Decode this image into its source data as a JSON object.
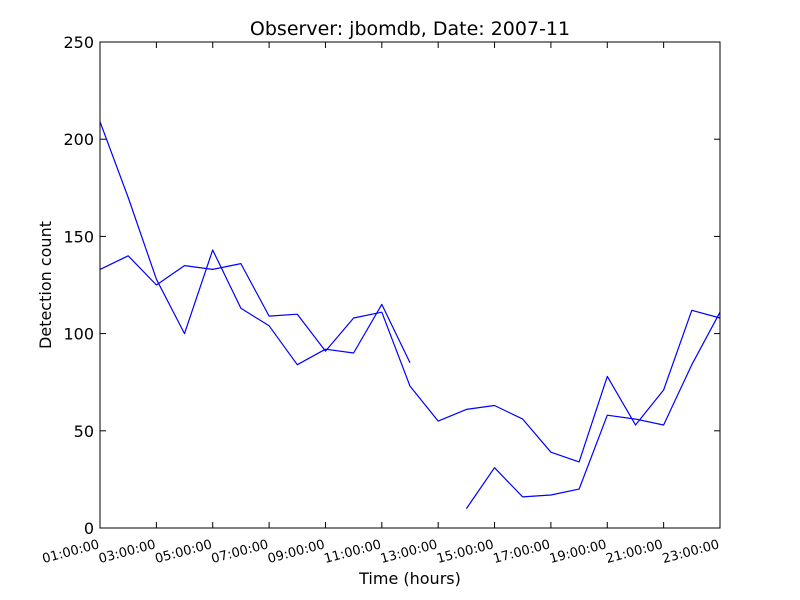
{
  "chart_data": {
    "type": "line",
    "title": "Observer: jbomdb, Date: 2007-11",
    "xlabel": "Time (hours)",
    "ylabel": "Detection count",
    "xlim": [
      "01:00:00",
      "23:00:00"
    ],
    "ylim": [
      0,
      250
    ],
    "x_ticks": [
      "01:00:00",
      "03:00:00",
      "05:00:00",
      "07:00:00",
      "09:00:00",
      "11:00:00",
      "13:00:00",
      "15:00:00",
      "17:00:00",
      "19:00:00",
      "21:00:00",
      "23:00:00"
    ],
    "y_ticks": [
      0,
      50,
      100,
      150,
      200,
      250
    ],
    "grid": false,
    "color": "#0000ff",
    "series": [
      {
        "x": [
          "01:00:00",
          "02:00:00",
          "03:00:00",
          "04:00:00",
          "05:00:00",
          "06:00:00",
          "07:00:00",
          "08:00:00",
          "09:00:00",
          "10:00:00",
          "11:00:00",
          "12:00:00"
        ],
        "values": [
          209,
          170,
          128,
          100,
          143,
          113,
          104,
          84,
          92,
          90,
          115,
          85
        ]
      },
      {
        "x": [
          "01:00:00",
          "02:00:00",
          "03:00:00",
          "04:00:00",
          "05:00:00",
          "06:00:00",
          "07:00:00",
          "08:00:00",
          "09:00:00",
          "10:00:00",
          "11:00:00",
          "12:00:00",
          "13:00:00",
          "14:00:00",
          "15:00:00",
          "16:00:00",
          "17:00:00",
          "18:00:00",
          "19:00:00",
          "20:00:00",
          "21:00:00",
          "22:00:00",
          "23:00:00"
        ],
        "values": [
          133,
          140,
          125,
          135,
          133,
          136,
          109,
          110,
          91,
          108,
          111,
          73,
          55,
          61,
          63,
          56,
          39,
          34,
          78,
          53,
          71,
          112,
          108
        ]
      },
      {
        "x": [
          "14:00:00",
          "15:00:00",
          "16:00:00",
          "17:00:00",
          "18:00:00",
          "19:00:00",
          "20:00:00",
          "21:00:00",
          "22:00:00",
          "23:00:00"
        ],
        "values": [
          10,
          31,
          16,
          17,
          20,
          58,
          56,
          53,
          84,
          111
        ]
      }
    ]
  }
}
